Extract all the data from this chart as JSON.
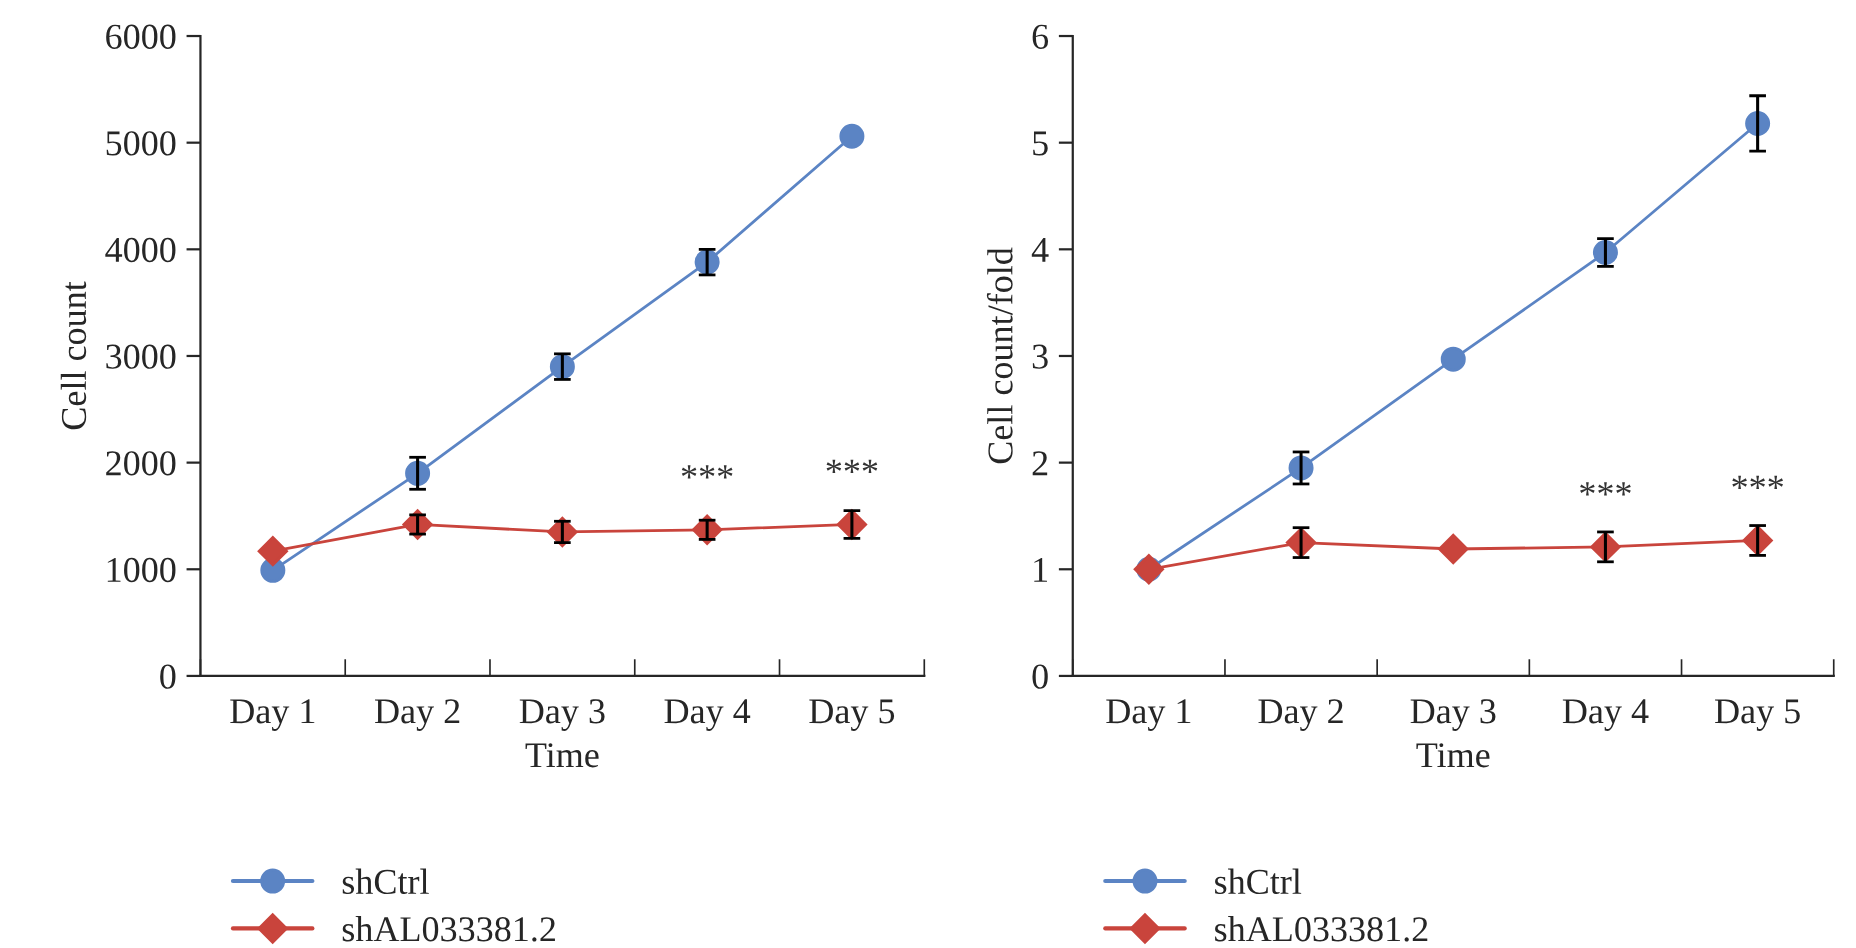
{
  "chart_data": [
    {
      "type": "line",
      "xlabel": "Time",
      "ylabel": "Cell count",
      "categories": [
        "Day 1",
        "Day 2",
        "Day 3",
        "Day 4",
        "Day 5"
      ],
      "ylim": [
        0,
        6000
      ],
      "yticks": [
        0,
        1000,
        2000,
        3000,
        4000,
        5000,
        6000
      ],
      "grid": false,
      "legend": "bottom left",
      "series": [
        {
          "name": "shCtrl",
          "color": "#5b84c4",
          "marker": "circle",
          "values": [
            990,
            1900,
            2900,
            3880,
            5060
          ],
          "errors": [
            null,
            150,
            120,
            120,
            null
          ]
        },
        {
          "name": "shAL033381.2",
          "color": "#c9443c",
          "marker": "diamond",
          "values": [
            1170,
            1420,
            1350,
            1370,
            1420
          ],
          "errors": [
            null,
            90,
            100,
            90,
            130
          ]
        }
      ],
      "annotations": [
        {
          "text": "***",
          "x": "Day 4",
          "y": 1370
        },
        {
          "text": "***",
          "x": "Day 5",
          "y": 1420
        }
      ]
    },
    {
      "type": "line",
      "xlabel": "Time",
      "ylabel": "Cell count/fold",
      "categories": [
        "Day 1",
        "Day 2",
        "Day 3",
        "Day 4",
        "Day 5"
      ],
      "ylim": [
        0,
        6
      ],
      "yticks": [
        0,
        1,
        2,
        3,
        4,
        5,
        6
      ],
      "grid": false,
      "legend": "bottom left",
      "series": [
        {
          "name": "shCtrl",
          "color": "#5b84c4",
          "marker": "circle",
          "values": [
            1,
            1.95,
            2.97,
            3.97,
            5.18
          ],
          "errors": [
            null,
            0.15,
            null,
            0.13,
            0.26
          ]
        },
        {
          "name": "shAL033381.2",
          "color": "#c9443c",
          "marker": "diamond",
          "values": [
            1,
            1.25,
            1.19,
            1.21,
            1.27
          ],
          "errors": [
            null,
            0.14,
            null,
            0.14,
            0.14
          ]
        }
      ],
      "annotations": [
        {
          "text": "***",
          "x": "Day 4",
          "y": 1.21
        },
        {
          "text": "***",
          "x": "Day 5",
          "y": 1.27
        }
      ]
    }
  ]
}
